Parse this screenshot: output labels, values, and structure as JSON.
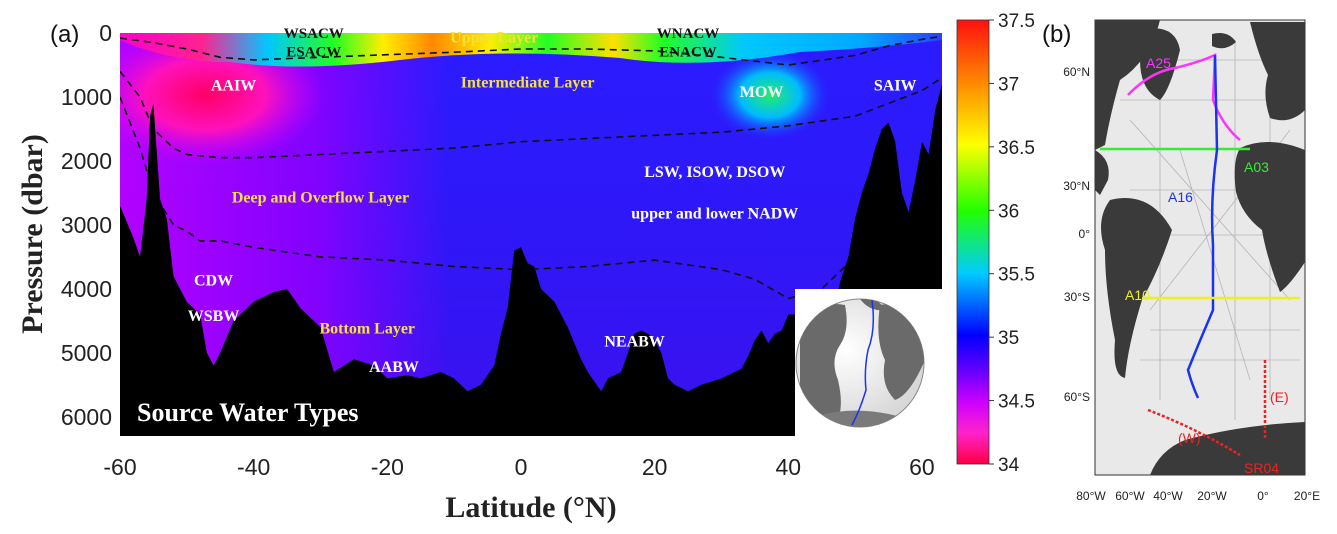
{
  "chart_data": [
    {
      "type": "heatmap",
      "panel_label": "(a)",
      "title": "Source Water Types",
      "xlabel": "Latitude (°N)",
      "ylabel": "Pressure (dbar)",
      "xlim": [
        -60,
        63
      ],
      "ylim": [
        0,
        6300
      ],
      "y_inverted": true,
      "xticks": [
        "-60",
        "-40",
        "-20",
        "0",
        "20",
        "40",
        "60"
      ],
      "yticks": [
        "0",
        "1000",
        "2000",
        "3000",
        "4000",
        "5000",
        "6000"
      ],
      "colorbar": {
        "min": 34,
        "max": 37.5,
        "ticks": [
          "37.5",
          "37",
          "36.5",
          "36",
          "35.5",
          "35",
          "34.5",
          "34"
        ],
        "colors": [
          "#ff0000",
          "#ff7f00",
          "#ffff00",
          "#00ff00",
          "#00c8ff",
          "#0000ff",
          "#6600ff",
          "#ff00ff",
          "#ff0044"
        ]
      },
      "layers": [
        {
          "name": "Upper Layer",
          "lat": -4,
          "pressure": 150
        },
        {
          "name": "Intermediate Layer",
          "lat": 1,
          "pressure": 850
        },
        {
          "name": "Deep and Overflow Layer",
          "lat": -30,
          "pressure": 2650
        },
        {
          "name": "Bottom Layer",
          "lat": -23,
          "pressure": 4700
        }
      ],
      "water_masses": [
        {
          "name": "WSACW",
          "lat": -31,
          "pressure": 80,
          "dark": true
        },
        {
          "name": "ESACW",
          "lat": -31,
          "pressure": 370,
          "dark": true
        },
        {
          "name": "WNACW",
          "lat": 25,
          "pressure": 80,
          "dark": true
        },
        {
          "name": "ENACW",
          "lat": 25,
          "pressure": 370,
          "dark": true
        },
        {
          "name": "AAIW",
          "lat": -43,
          "pressure": 900,
          "dark": false
        },
        {
          "name": "MOW",
          "lat": 36,
          "pressure": 1000,
          "dark": false
        },
        {
          "name": "SAIW",
          "lat": 56,
          "pressure": 900,
          "dark": false
        },
        {
          "name": "LSW, ISOW, DSOW",
          "lat": 29,
          "pressure": 2250,
          "dark": false
        },
        {
          "name": "upper and lower NADW",
          "lat": 29,
          "pressure": 2900,
          "dark": false
        },
        {
          "name": "CDW",
          "lat": -46,
          "pressure": 3950,
          "dark": false
        },
        {
          "name": "WSBW",
          "lat": -46,
          "pressure": 4500,
          "dark": false
        },
        {
          "name": "AABW",
          "lat": -19,
          "pressure": 5300,
          "dark": false
        },
        {
          "name": "NEABW",
          "lat": 17,
          "pressure": 4900,
          "dark": false
        }
      ],
      "isopycnal_boundaries": [
        {
          "lat": [
            -60,
            -55,
            -50,
            -45,
            -40,
            -35,
            -30,
            -20,
            -10,
            0,
            10,
            20,
            30,
            40,
            50,
            55,
            60,
            63
          ],
          "pressure": [
            80,
            150,
            250,
            380,
            420,
            400,
            380,
            340,
            300,
            250,
            250,
            280,
            380,
            500,
            350,
            200,
            100,
            50
          ]
        },
        {
          "lat": [
            -60,
            -57,
            -55,
            -52,
            -50,
            -45,
            -40,
            -30,
            -20,
            -10,
            0,
            10,
            20,
            30,
            40,
            50,
            55,
            60,
            63
          ],
          "pressure": [
            600,
            1000,
            1500,
            1800,
            1900,
            1950,
            1950,
            1900,
            1850,
            1800,
            1700,
            1650,
            1600,
            1550,
            1450,
            1300,
            1100,
            900,
            700
          ]
        },
        {
          "lat": [
            -60,
            -57,
            -55,
            -52,
            -50,
            -48,
            -45,
            -40,
            -30,
            -20,
            -10,
            0,
            10,
            20,
            30,
            35,
            40,
            45,
            50,
            52,
            55
          ],
          "pressure": [
            1000,
            1800,
            2500,
            3000,
            3100,
            3250,
            3250,
            3350,
            3500,
            3550,
            3650,
            3700,
            3650,
            3550,
            3700,
            3850,
            4150,
            4000,
            3500,
            3000,
            2200
          ]
        }
      ],
      "bathymetry": {
        "lat": [
          -60,
          -58,
          -57,
          -56,
          -55.5,
          -55,
          -54,
          -53,
          -52,
          -51,
          -50,
          -48,
          -47,
          -46,
          -45,
          -43,
          -40,
          -37,
          -35,
          -33,
          -30,
          -28,
          -25,
          -22,
          -20,
          -17,
          -15,
          -12,
          -10,
          -8,
          -6,
          -4,
          -3,
          -2,
          -1,
          0,
          1,
          2,
          3,
          5,
          7,
          9,
          10,
          12,
          13,
          15,
          16,
          17,
          18,
          19,
          20,
          21,
          22,
          23,
          25,
          27,
          30,
          32,
          33,
          34,
          35,
          36,
          37,
          38,
          39,
          40,
          41,
          42,
          43,
          44,
          45,
          46,
          47,
          48,
          49,
          50,
          51,
          52,
          53,
          54,
          55,
          56,
          57,
          58,
          59,
          60,
          61,
          62,
          63
        ],
        "pressure": [
          2700,
          3200,
          3500,
          2600,
          1300,
          1100,
          2600,
          2900,
          3800,
          4000,
          4200,
          4400,
          5000,
          5200,
          5000,
          4500,
          4200,
          4050,
          4000,
          4300,
          4600,
          5300,
          5100,
          5200,
          5400,
          5350,
          5400,
          5300,
          5400,
          5600,
          5500,
          5200,
          4700,
          4300,
          3400,
          3350,
          3600,
          3650,
          4000,
          4200,
          4600,
          5100,
          5300,
          5600,
          5400,
          5300,
          5000,
          4700,
          4650,
          4700,
          4800,
          5000,
          5400,
          5500,
          5600,
          5500,
          5400,
          5300,
          5250,
          5050,
          4800,
          4650,
          4850,
          4700,
          4650,
          4400,
          4400,
          4700,
          4600,
          4500,
          4550,
          4400,
          4200,
          3800,
          3500,
          2900,
          2500,
          2200,
          1800,
          1500,
          1400,
          1700,
          2500,
          2800,
          2300,
          1700,
          1900,
          1200,
          800
        ]
      }
    },
    {
      "type": "map",
      "panel_label": "(b)",
      "lon_ticks": [
        "80°W",
        "60°W",
        "40°W",
        "20°W",
        "0°",
        "20°E"
      ],
      "lat_ticks": [
        "60°N",
        "30°N",
        "0°",
        "30°S",
        "60°S"
      ],
      "sections": [
        {
          "name": "A25",
          "color": "#ff33ff"
        },
        {
          "name": "A03",
          "color": "#33ee33"
        },
        {
          "name": "A16",
          "color": "#1a33ee"
        },
        {
          "name": "A10",
          "color": "#eeee22"
        },
        {
          "name": "SR04",
          "color": "#ee2222"
        },
        {
          "name": "(W)",
          "color": "#ee2222"
        },
        {
          "name": "(E)",
          "color": "#ee2222"
        }
      ]
    }
  ]
}
